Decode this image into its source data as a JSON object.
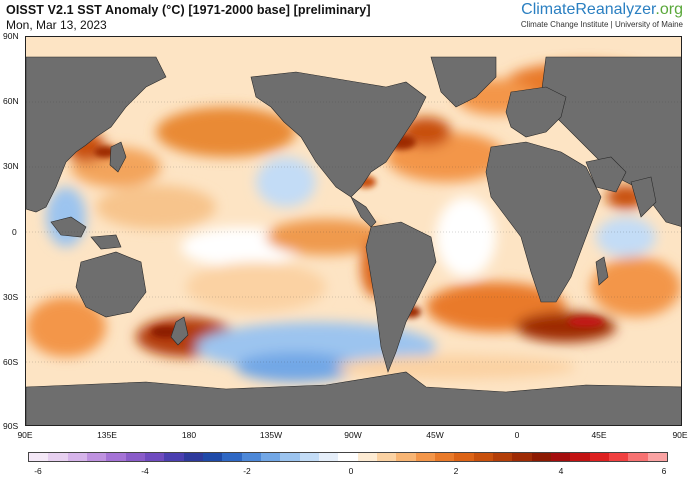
{
  "title": "OISST V2.1 SST Anomaly (°C) [1971-2000 base] [preliminary]",
  "date": "Mon, Mar 13, 2023",
  "brand": {
    "name_part1": "Climate",
    "name_part2": "Reanalyzer",
    "name_part3": ".org",
    "subtitle": "Climate Change Institute | University of Maine"
  },
  "lat_labels": [
    "90N",
    "60N",
    "30N",
    "0",
    "30S",
    "60S",
    "90S"
  ],
  "lon_labels": [
    "90E",
    "135E",
    "180",
    "135W",
    "90W",
    "45W",
    "0",
    "45E",
    "90E"
  ],
  "colorbar": {
    "ticks": [
      "-6",
      "-4",
      "-2",
      "0",
      "2",
      "4",
      "6"
    ],
    "colors": [
      "#f4e8f7",
      "#e7d0f0",
      "#d6b4ea",
      "#bf92e0",
      "#a573d6",
      "#8a5cc9",
      "#6f4bbf",
      "#4b3fb0",
      "#2e3a9c",
      "#1f4aa8",
      "#2f68c4",
      "#4d88d8",
      "#72a7e6",
      "#9cc4ef",
      "#c3dcf6",
      "#e5eef9",
      "#ffffff",
      "#fdebd3",
      "#fbd2a3",
      "#f8b574",
      "#f3964a",
      "#e97a2a",
      "#dc6316",
      "#c8500c",
      "#b33e08",
      "#9e2b05",
      "#8c1a02",
      "#a40d0d",
      "#c21212",
      "#dd2020",
      "#f04040",
      "#f77272",
      "#fba3a3"
    ],
    "range": [
      -6,
      6
    ]
  },
  "land_color": "#6e6e6e"
}
